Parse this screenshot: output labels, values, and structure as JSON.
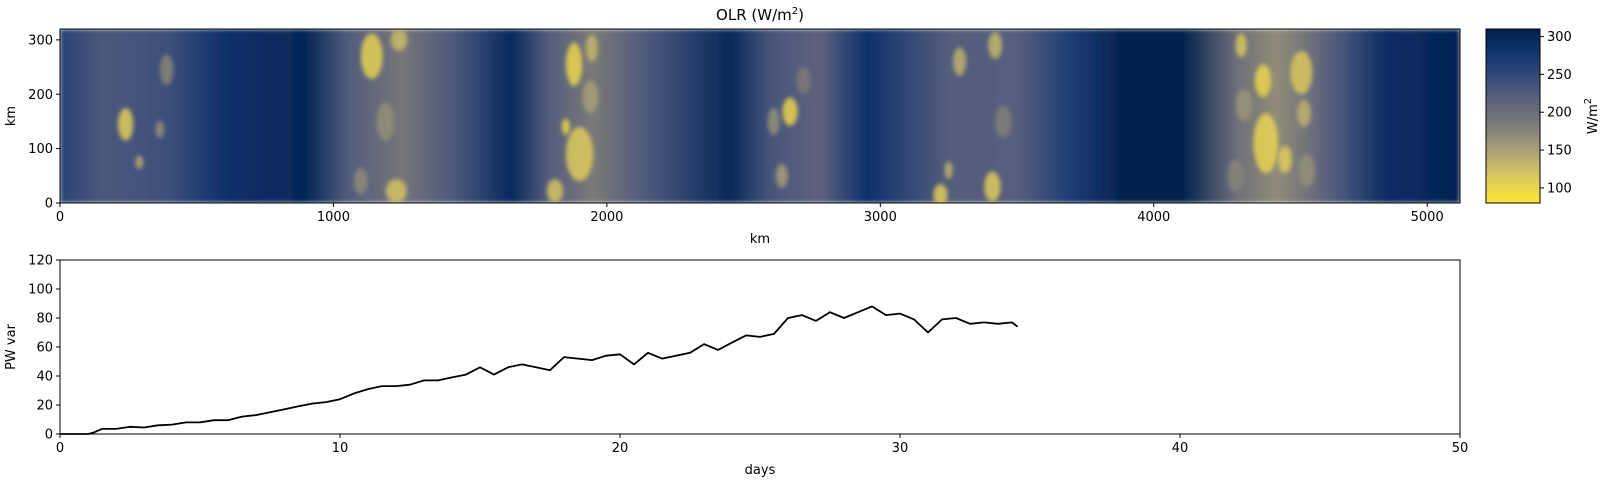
{
  "chart_data": [
    {
      "type": "heatmap",
      "title": "OLR (W/m²)",
      "title_main": "OLR (W/m",
      "title_sup": "2",
      "title_end": ")",
      "xlabel": "km",
      "ylabel": "km",
      "xlim": [
        0,
        5120
      ],
      "ylim": [
        0,
        320
      ],
      "xticks": [
        0,
        1000,
        2000,
        3000,
        4000,
        5000
      ],
      "yticks": [
        0,
        100,
        200,
        300
      ],
      "colormap": "cividis_r",
      "colors": {
        "low": "#fde737",
        "mid": "#7c7b78",
        "high": "#00204c"
      },
      "background_field_W_m2": [
        {
          "x": 0,
          "v": 260
        },
        {
          "x": 150,
          "v": 228
        },
        {
          "x": 400,
          "v": 240
        },
        {
          "x": 600,
          "v": 285
        },
        {
          "x": 900,
          "v": 300
        },
        {
          "x": 1050,
          "v": 225
        },
        {
          "x": 1250,
          "v": 190
        },
        {
          "x": 1450,
          "v": 230
        },
        {
          "x": 1650,
          "v": 296
        },
        {
          "x": 1780,
          "v": 225
        },
        {
          "x": 1950,
          "v": 185
        },
        {
          "x": 2150,
          "v": 228
        },
        {
          "x": 2450,
          "v": 298
        },
        {
          "x": 2600,
          "v": 232
        },
        {
          "x": 2780,
          "v": 215
        },
        {
          "x": 2950,
          "v": 285
        },
        {
          "x": 3250,
          "v": 222
        },
        {
          "x": 3500,
          "v": 220
        },
        {
          "x": 3700,
          "v": 268
        },
        {
          "x": 3900,
          "v": 310
        },
        {
          "x": 4100,
          "v": 310
        },
        {
          "x": 4300,
          "v": 200
        },
        {
          "x": 4450,
          "v": 168
        },
        {
          "x": 4650,
          "v": 220
        },
        {
          "x": 4850,
          "v": 290
        },
        {
          "x": 5120,
          "v": 305
        }
      ],
      "cells": [
        {
          "x": 240,
          "y": 145,
          "rx": 28,
          "ry": 30,
          "v": 110
        },
        {
          "x": 290,
          "y": 75,
          "rx": 14,
          "ry": 12,
          "v": 135
        },
        {
          "x": 365,
          "y": 135,
          "rx": 16,
          "ry": 16,
          "v": 165
        },
        {
          "x": 390,
          "y": 245,
          "rx": 25,
          "ry": 28,
          "v": 175
        },
        {
          "x": 1140,
          "y": 270,
          "rx": 40,
          "ry": 42,
          "v": 105
        },
        {
          "x": 1230,
          "y": 22,
          "rx": 38,
          "ry": 22,
          "v": 120
        },
        {
          "x": 1190,
          "y": 150,
          "rx": 32,
          "ry": 35,
          "v": 165
        },
        {
          "x": 1240,
          "y": 300,
          "rx": 30,
          "ry": 20,
          "v": 125
        },
        {
          "x": 1100,
          "y": 40,
          "rx": 25,
          "ry": 25,
          "v": 170
        },
        {
          "x": 1880,
          "y": 255,
          "rx": 30,
          "ry": 40,
          "v": 100
        },
        {
          "x": 1900,
          "y": 90,
          "rx": 50,
          "ry": 50,
          "v": 112
        },
        {
          "x": 1850,
          "y": 140,
          "rx": 15,
          "ry": 15,
          "v": 100
        },
        {
          "x": 1810,
          "y": 22,
          "rx": 30,
          "ry": 22,
          "v": 118
        },
        {
          "x": 1945,
          "y": 285,
          "rx": 22,
          "ry": 25,
          "v": 130
        },
        {
          "x": 1940,
          "y": 195,
          "rx": 28,
          "ry": 30,
          "v": 150
        },
        {
          "x": 2670,
          "y": 168,
          "rx": 28,
          "ry": 26,
          "v": 100
        },
        {
          "x": 2610,
          "y": 150,
          "rx": 22,
          "ry": 25,
          "v": 165
        },
        {
          "x": 2640,
          "y": 50,
          "rx": 22,
          "ry": 22,
          "v": 150
        },
        {
          "x": 2720,
          "y": 225,
          "rx": 26,
          "ry": 26,
          "v": 185
        },
        {
          "x": 3220,
          "y": 15,
          "rx": 26,
          "ry": 20,
          "v": 110
        },
        {
          "x": 3290,
          "y": 260,
          "rx": 24,
          "ry": 26,
          "v": 135
        },
        {
          "x": 3410,
          "y": 30,
          "rx": 30,
          "ry": 28,
          "v": 112
        },
        {
          "x": 3420,
          "y": 290,
          "rx": 25,
          "ry": 25,
          "v": 130
        },
        {
          "x": 3250,
          "y": 60,
          "rx": 15,
          "ry": 16,
          "v": 135
        },
        {
          "x": 3450,
          "y": 150,
          "rx": 30,
          "ry": 30,
          "v": 180
        },
        {
          "x": 4320,
          "y": 290,
          "rx": 20,
          "ry": 22,
          "v": 115
        },
        {
          "x": 4400,
          "y": 225,
          "rx": 30,
          "ry": 30,
          "v": 100
        },
        {
          "x": 4410,
          "y": 110,
          "rx": 45,
          "ry": 55,
          "v": 102
        },
        {
          "x": 4540,
          "y": 240,
          "rx": 40,
          "ry": 40,
          "v": 115
        },
        {
          "x": 4480,
          "y": 80,
          "rx": 25,
          "ry": 25,
          "v": 110
        },
        {
          "x": 4550,
          "y": 165,
          "rx": 25,
          "ry": 25,
          "v": 135
        },
        {
          "x": 4330,
          "y": 180,
          "rx": 30,
          "ry": 30,
          "v": 160
        },
        {
          "x": 4560,
          "y": 60,
          "rx": 30,
          "ry": 30,
          "v": 165
        },
        {
          "x": 4300,
          "y": 50,
          "rx": 30,
          "ry": 30,
          "v": 175
        }
      ],
      "colorbar": {
        "label_main": "W/m",
        "label_sup": "2",
        "range": [
          80,
          310
        ],
        "ticks": [
          100,
          150,
          200,
          250,
          300
        ]
      }
    },
    {
      "type": "line",
      "xlabel": "days",
      "ylabel": "PW var",
      "xlim": [
        0,
        50
      ],
      "ylim": [
        0,
        120
      ],
      "xticks": [
        0,
        10,
        20,
        30,
        40,
        50
      ],
      "yticks": [
        0,
        20,
        40,
        60,
        80,
        100,
        120
      ],
      "line_color": "#000000",
      "series": [
        {
          "x": [
            0,
            0.5,
            1.0,
            1.2,
            1.5,
            2,
            2.5,
            3,
            3.5,
            4,
            4.5,
            5,
            5.5,
            6,
            6.5,
            7,
            7.5,
            8,
            8.5,
            9,
            9.5,
            10,
            10.5,
            11,
            11.5,
            12,
            12.5,
            13,
            13.5,
            14,
            14.5,
            15,
            15.5,
            16,
            16.5,
            17,
            17.5,
            18,
            18.5,
            19,
            19.5,
            20,
            20.5,
            21,
            21.5,
            22,
            22.5,
            23,
            23.5,
            24,
            24.5,
            25,
            25.5,
            26,
            26.5,
            27,
            27.5,
            28,
            28.5,
            29,
            29.5,
            30,
            30.5,
            31,
            31.5,
            32,
            32.5,
            33,
            33.5,
            34,
            34.2
          ],
          "y": [
            0,
            0,
            0,
            1,
            3.5,
            3.5,
            5,
            4.5,
            6,
            6.5,
            8,
            8,
            9.5,
            9.5,
            12,
            13,
            15,
            17,
            19,
            21,
            22,
            24,
            28,
            31,
            33,
            33,
            34,
            37,
            37,
            39,
            41,
            46,
            41,
            46,
            48,
            46,
            44,
            53,
            52,
            51,
            54,
            55,
            48,
            56,
            52,
            54,
            56,
            62,
            58,
            63,
            68,
            67,
            69,
            80,
            82,
            78,
            84,
            80,
            84,
            88,
            82,
            83,
            79,
            70,
            79,
            80,
            76,
            77,
            76,
            77,
            74
          ]
        }
      ]
    }
  ]
}
